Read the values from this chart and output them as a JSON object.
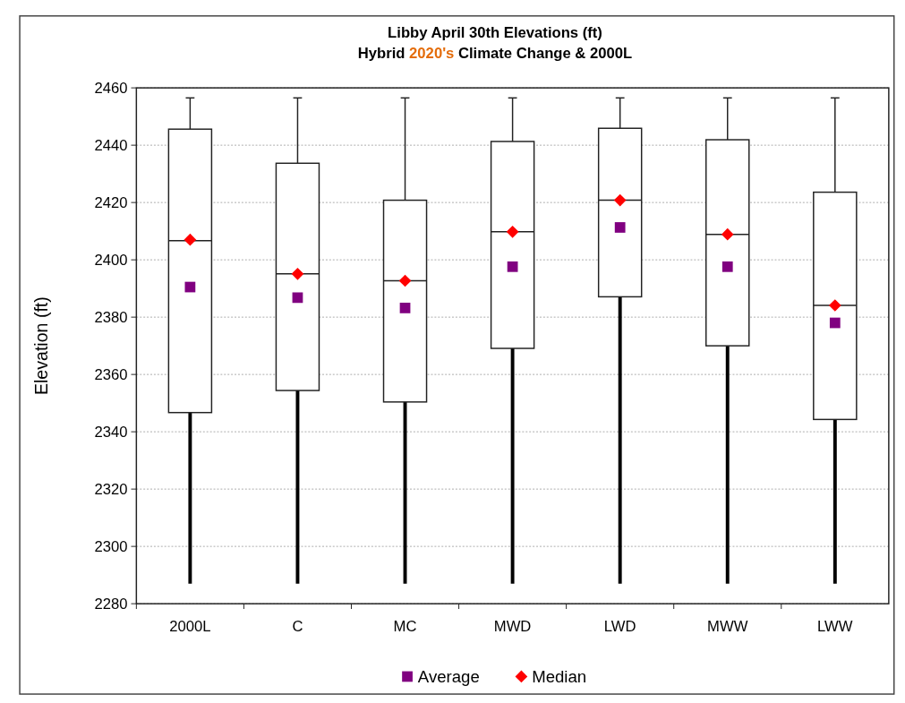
{
  "chart_data": {
    "type": "box",
    "title": "Libby April 30th Elevations (ft)",
    "subtitle": "Hybrid 2020's Climate Change & 2000L",
    "ylabel": "Elevation (ft)",
    "categories": [
      "2000L",
      "C",
      "MC",
      "MWD",
      "LWD",
      "MWW",
      "LWW"
    ],
    "boxes": [
      {
        "low": 2287,
        "q1": 2346.7,
        "median": 2406.7,
        "q3": 2445.6,
        "high": 2456.5
      },
      {
        "low": 2287,
        "q1": 2354.4,
        "median": 2395.1,
        "q3": 2433.7,
        "high": 2456.5
      },
      {
        "low": 2287,
        "q1": 2350.4,
        "median": 2392.7,
        "q3": 2420.8,
        "high": 2456.5
      },
      {
        "low": 2287,
        "q1": 2369.1,
        "median": 2409.8,
        "q3": 2441.3,
        "high": 2456.5
      },
      {
        "low": 2287,
        "q1": 2387.1,
        "median": 2420.8,
        "q3": 2445.9,
        "high": 2456.5
      },
      {
        "low": 2287,
        "q1": 2370,
        "median": 2408.9,
        "q3": 2441.9,
        "high": 2456.5
      },
      {
        "low": 2287,
        "q1": 2344.3,
        "median": 2384.1,
        "q3": 2423.6,
        "high": 2456.5
      }
    ],
    "series": [
      {
        "name": "Average",
        "type": "scatter",
        "marker": "square",
        "color": "#800080",
        "x": [
          "2000L",
          "C",
          "MC",
          "MWD",
          "LWD",
          "MWW",
          "LWW"
        ],
        "values": [
          2390.5,
          2386.8,
          2383.2,
          2397.6,
          2411.3,
          2397.6,
          2378
        ]
      },
      {
        "name": "Median",
        "type": "scatter",
        "marker": "diamond",
        "color": "#ff0000",
        "x": [
          "2000L",
          "C",
          "MC",
          "MWD",
          "LWD",
          "MWW",
          "LWW"
        ],
        "values": [
          2407,
          2395.1,
          2392.7,
          2409.8,
          2420.8,
          2408.9,
          2384.1
        ]
      }
    ],
    "ylim": [
      2280,
      2460
    ],
    "yticks": [
      2280,
      2300,
      2320,
      2340,
      2360,
      2380,
      2400,
      2420,
      2440,
      2460
    ],
    "grid": "y",
    "legend": "bottom"
  }
}
